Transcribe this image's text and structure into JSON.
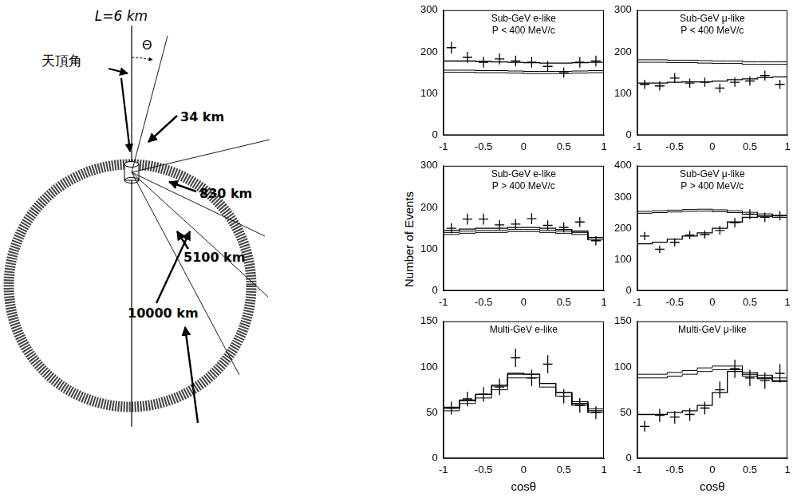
{
  "diagram": {
    "top_label": "L=6 km",
    "zenith_label": "天頂角",
    "angle_label": "Θ",
    "path_labels": [
      "34 km",
      "830 km",
      "5100 km",
      "10000 km"
    ]
  },
  "figure": {
    "y_label": "Number of Events"
  },
  "chart_data": [
    {
      "type": "histogram",
      "title": "Sub-GeV e-like",
      "subtitle": "P < 400 MeV/c",
      "bins": [
        -1,
        -0.8,
        -0.6,
        -0.4,
        -0.2,
        0,
        0.2,
        0.4,
        0.6,
        0.8,
        1
      ],
      "xlim": [
        -1,
        1
      ],
      "xticks": [
        -1,
        -0.5,
        0,
        0.5,
        1
      ],
      "ylim": [
        0,
        300
      ],
      "yticks": [
        0,
        100,
        200,
        300
      ],
      "grid": false,
      "series": [
        {
          "type": "scatter",
          "marker": "cross",
          "color": "#000000",
          "x": [
            -0.9,
            -0.7,
            -0.5,
            -0.3,
            -0.1,
            0.1,
            0.3,
            0.5,
            0.7,
            0.9
          ],
          "values": [
            210,
            187,
            175,
            183,
            178,
            175,
            165,
            150,
            175,
            178
          ],
          "errors": [
            14,
            13,
            13,
            13,
            13,
            13,
            13,
            12,
            13,
            13
          ]
        },
        {
          "type": "step",
          "line_style": "box",
          "color": "#000000",
          "values_low": [
            151,
            151,
            150,
            150,
            149,
            148,
            148,
            148,
            149,
            150
          ],
          "values_high": [
            156,
            156,
            155,
            155,
            154,
            153,
            153,
            153,
            154,
            155
          ]
        },
        {
          "type": "step",
          "line_style": "solid",
          "color": "#000000",
          "values": [
            178,
            178,
            177,
            176,
            175,
            174,
            173,
            173,
            174,
            175
          ]
        }
      ]
    },
    {
      "type": "histogram",
      "title": "Sub-GeV μ-like",
      "subtitle": "P < 400 MeV/c",
      "bins": [
        -1,
        -0.8,
        -0.6,
        -0.4,
        -0.2,
        0,
        0.2,
        0.4,
        0.6,
        0.8,
        1
      ],
      "xlim": [
        -1,
        1
      ],
      "xticks": [
        -1,
        -0.5,
        0,
        0.5,
        1
      ],
      "ylim": [
        0,
        300
      ],
      "yticks": [
        0,
        100,
        200,
        300
      ],
      "grid": false,
      "series": [
        {
          "type": "scatter",
          "marker": "cross",
          "color": "#000000",
          "x": [
            -0.9,
            -0.7,
            -0.5,
            -0.3,
            -0.1,
            0.1,
            0.3,
            0.5,
            0.7,
            0.9
          ],
          "values": [
            122,
            118,
            137,
            125,
            127,
            113,
            127,
            130,
            143,
            122
          ],
          "errors": [
            11,
            11,
            12,
            11,
            11,
            11,
            11,
            11,
            12,
            11
          ]
        },
        {
          "type": "step",
          "line_style": "box",
          "color": "#000000",
          "values_low": [
            175,
            175,
            174,
            174,
            173,
            172,
            172,
            170,
            170,
            170
          ],
          "values_high": [
            181,
            181,
            180,
            180,
            179,
            178,
            178,
            176,
            176,
            176
          ]
        },
        {
          "type": "step",
          "line_style": "solid",
          "color": "#000000",
          "values": [
            125,
            125,
            127,
            128,
            128,
            130,
            133,
            135,
            138,
            140
          ]
        }
      ]
    },
    {
      "type": "histogram",
      "title": "Sub-GeV e-like",
      "subtitle": "P > 400 MeV/c",
      "bins": [
        -1,
        -0.8,
        -0.6,
        -0.4,
        -0.2,
        0,
        0.2,
        0.4,
        0.6,
        0.8,
        1
      ],
      "xlim": [
        -1,
        1
      ],
      "xticks": [
        -1,
        -0.5,
        0,
        0.5,
        1
      ],
      "ylim": [
        0,
        300
      ],
      "yticks": [
        0,
        100,
        200,
        300
      ],
      "grid": false,
      "series": [
        {
          "type": "scatter",
          "marker": "cross",
          "color": "#000000",
          "x": [
            -0.9,
            -0.7,
            -0.5,
            -0.3,
            -0.1,
            0.1,
            0.3,
            0.5,
            0.7,
            0.9
          ],
          "values": [
            150,
            172,
            172,
            158,
            160,
            173,
            157,
            152,
            165,
            120
          ],
          "errors": [
            12,
            13,
            13,
            12,
            12,
            13,
            12,
            12,
            12,
            11
          ]
        },
        {
          "type": "step",
          "line_style": "box",
          "color": "#000000",
          "values_low": [
            135,
            138,
            140,
            140,
            142,
            142,
            140,
            138,
            135,
            122
          ],
          "values_high": [
            140,
            143,
            145,
            145,
            147,
            147,
            145,
            143,
            140,
            127
          ]
        },
        {
          "type": "step",
          "line_style": "solid",
          "color": "#000000",
          "values": [
            145,
            148,
            150,
            150,
            152,
            152,
            150,
            147,
            143,
            128
          ]
        }
      ]
    },
    {
      "type": "histogram",
      "title": "Sub-GeV μ-like",
      "subtitle": "P > 400 MeV/c",
      "bins": [
        -1,
        -0.8,
        -0.6,
        -0.4,
        -0.2,
        0,
        0.2,
        0.4,
        0.6,
        0.8,
        1
      ],
      "xlim": [
        -1,
        1
      ],
      "xticks": [
        -1,
        -0.5,
        0,
        0.5,
        1
      ],
      "ylim": [
        0,
        400
      ],
      "yticks": [
        0,
        100,
        200,
        300,
        400
      ],
      "grid": false,
      "series": [
        {
          "type": "scatter",
          "marker": "cross",
          "color": "#000000",
          "x": [
            -0.9,
            -0.7,
            -0.5,
            -0.3,
            -0.1,
            0.1,
            0.3,
            0.5,
            0.7,
            0.9
          ],
          "values": [
            175,
            133,
            155,
            178,
            180,
            193,
            218,
            245,
            235,
            240
          ],
          "errors": [
            13,
            12,
            13,
            13,
            13,
            14,
            15,
            16,
            15,
            15
          ]
        },
        {
          "type": "step",
          "line_style": "box",
          "color": "#000000",
          "values_low": [
            248,
            250,
            252,
            254,
            255,
            253,
            250,
            245,
            240,
            235
          ],
          "values_high": [
            254,
            256,
            258,
            260,
            261,
            259,
            256,
            251,
            246,
            241
          ]
        },
        {
          "type": "step",
          "line_style": "solid",
          "color": "#000000",
          "values": [
            150,
            155,
            165,
            175,
            185,
            200,
            220,
            235,
            238,
            240
          ]
        }
      ]
    },
    {
      "type": "histogram",
      "title": "Multi-GeV e-like",
      "bins": [
        -1,
        -0.8,
        -0.6,
        -0.4,
        -0.2,
        0,
        0.2,
        0.4,
        0.6,
        0.8,
        1
      ],
      "xlim": [
        -1,
        1
      ],
      "xticks": [
        -1,
        -0.5,
        0,
        0.5,
        1
      ],
      "ylim": [
        0,
        150
      ],
      "yticks": [
        0,
        50,
        100,
        150
      ],
      "grid": false,
      "x_label": "cosθ",
      "series": [
        {
          "type": "scatter",
          "marker": "cross",
          "color": "#000000",
          "x": [
            -0.9,
            -0.7,
            -0.5,
            -0.3,
            -0.1,
            0.1,
            0.3,
            0.5,
            0.7,
            0.9
          ],
          "values": [
            55,
            65,
            70,
            78,
            110,
            88,
            103,
            68,
            58,
            50
          ],
          "errors": [
            7,
            8,
            8,
            9,
            10,
            9,
            10,
            8,
            8,
            7
          ]
        },
        {
          "type": "step",
          "line_style": "box",
          "color": "#000000",
          "values_low": [
            52,
            60,
            66,
            75,
            88,
            88,
            78,
            68,
            58,
            50
          ],
          "values_high": [
            56,
            64,
            70,
            79,
            92,
            92,
            82,
            72,
            62,
            54
          ]
        },
        {
          "type": "step",
          "line_style": "solid",
          "color": "#000000",
          "values": [
            55,
            63,
            70,
            80,
            93,
            92,
            82,
            72,
            60,
            52
          ]
        }
      ]
    },
    {
      "type": "histogram",
      "title": "Multi-GeV μ-like",
      "bins": [
        -1,
        -0.8,
        -0.6,
        -0.4,
        -0.2,
        0,
        0.2,
        0.4,
        0.6,
        0.8,
        1
      ],
      "xlim": [
        -1,
        1
      ],
      "xticks": [
        -1,
        -0.5,
        0,
        0.5,
        1
      ],
      "ylim": [
        0,
        150
      ],
      "yticks": [
        0,
        50,
        100,
        150
      ],
      "grid": false,
      "x_label": "cosθ",
      "series": [
        {
          "type": "scatter",
          "marker": "cross",
          "color": "#000000",
          "x": [
            -0.9,
            -0.7,
            -0.5,
            -0.3,
            -0.1,
            0.1,
            0.3,
            0.5,
            0.7,
            0.9
          ],
          "values": [
            35,
            47,
            45,
            48,
            55,
            75,
            98,
            88,
            85,
            93
          ],
          "errors": [
            6,
            7,
            7,
            7,
            7,
            9,
            10,
            9,
            9,
            10
          ]
        },
        {
          "type": "step",
          "line_style": "box",
          "color": "#000000",
          "values_low": [
            88,
            88,
            90,
            92,
            95,
            97,
            97,
            90,
            87,
            84
          ],
          "values_high": [
            92,
            92,
            94,
            96,
            99,
            101,
            101,
            94,
            91,
            88
          ]
        },
        {
          "type": "step",
          "line_style": "solid",
          "color": "#000000",
          "values": [
            48,
            48,
            50,
            52,
            58,
            72,
            95,
            92,
            88,
            85
          ]
        }
      ]
    }
  ]
}
